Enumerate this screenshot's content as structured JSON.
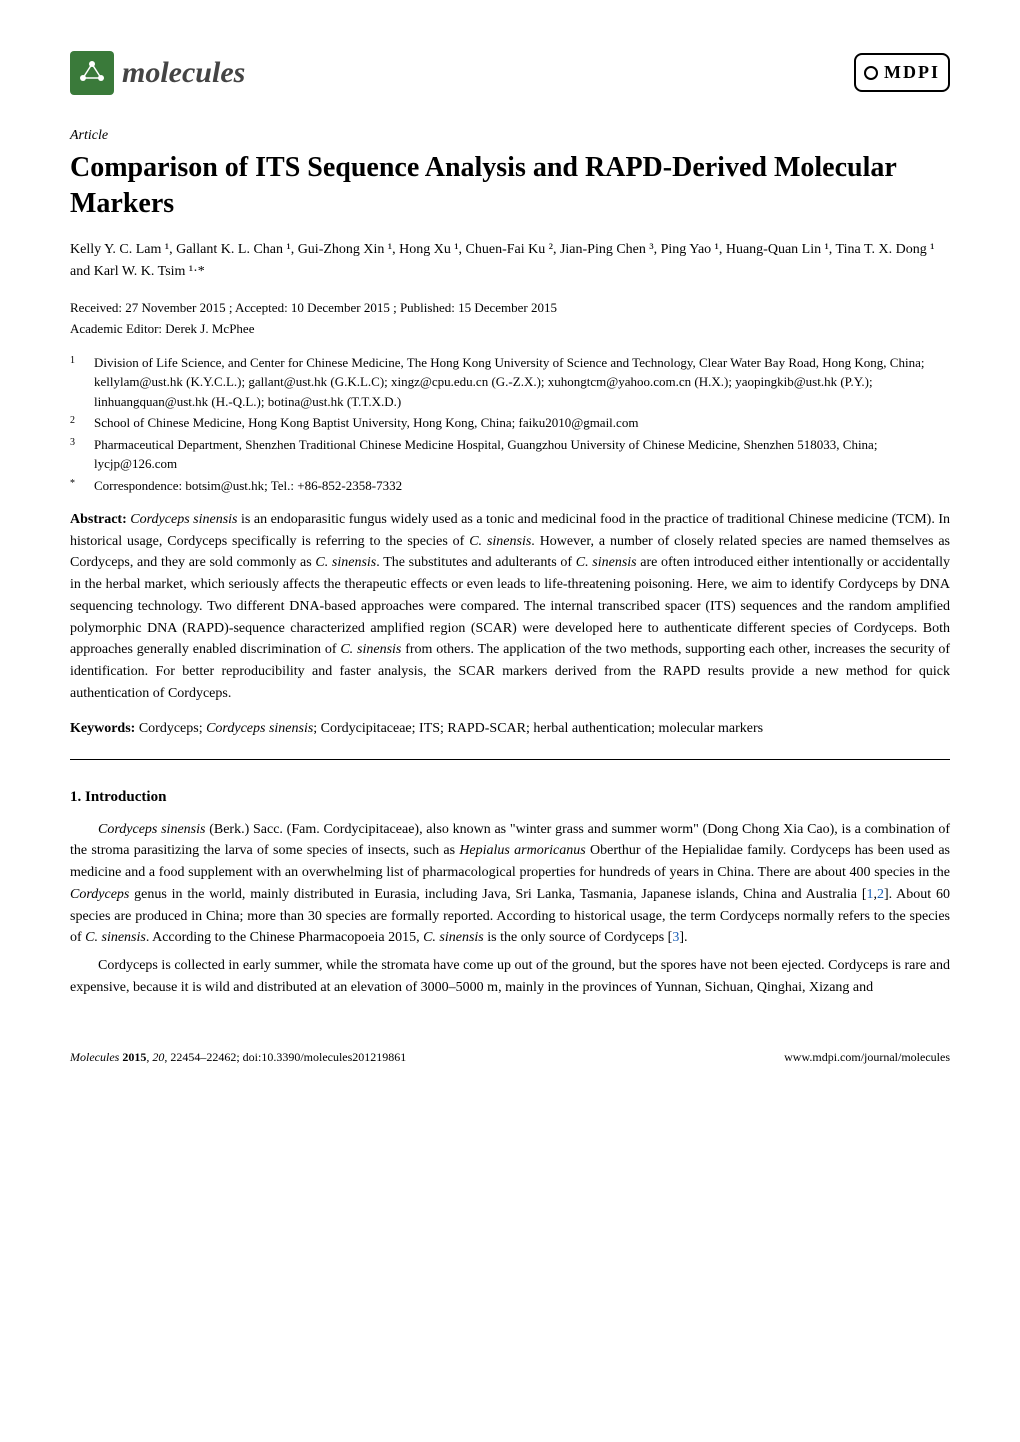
{
  "header": {
    "journal_name": "molecules",
    "publisher_logo": "MDPI"
  },
  "article": {
    "type": "Article",
    "title": "Comparison of ITS Sequence Analysis and RAPD-Derived Molecular Markers"
  },
  "authors_line": "Kelly Y. C. Lam ¹, Gallant K. L. Chan ¹, Gui-Zhong Xin ¹, Hong Xu ¹, Chuen-Fai Ku ², Jian-Ping Chen ³, Ping Yao ¹, Huang-Quan Lin ¹, Tina T. X. Dong ¹ and Karl W. K. Tsim ¹·*",
  "dates": "Received: 27 November 2015 ; Accepted: 10 December 2015 ; Published: 15 December 2015",
  "editor": "Academic Editor: Derek J. McPhee",
  "affiliations": [
    {
      "num": "1",
      "text": "Division of Life Science, and Center for Chinese Medicine, The Hong Kong University of Science and Technology, Clear Water Bay Road, Hong Kong, China; kellylam@ust.hk (K.Y.C.L.); gallant@ust.hk (G.K.L.C); xingz@cpu.edu.cn (G.-Z.X.); xuhongtcm@yahoo.com.cn (H.X.); yaopingkib@ust.hk (P.Y.); linhuangquan@ust.hk (H.-Q.L.); botina@ust.hk (T.T.X.D.)"
    },
    {
      "num": "2",
      "text": "School of Chinese Medicine, Hong Kong Baptist University, Hong Kong, China; faiku2010@gmail.com"
    },
    {
      "num": "3",
      "text": "Pharmaceutical Department, Shenzhen Traditional Chinese Medicine Hospital, Guangzhou University of Chinese Medicine, Shenzhen 518033, China; lycjp@126.com"
    },
    {
      "num": "*",
      "text": "Correspondence: botsim@ust.hk; Tel.: +86-852-2358-7332"
    }
  ],
  "abstract": {
    "label": "Abstract:",
    "text_parts": [
      {
        "italic": true,
        "text": "Cordyceps sinensis"
      },
      {
        "italic": false,
        "text": " is an endoparasitic fungus widely used as a tonic and medicinal food in the practice of traditional Chinese medicine (TCM). In historical usage, Cordyceps specifically is referring to the species of "
      },
      {
        "italic": true,
        "text": "C. sinensis"
      },
      {
        "italic": false,
        "text": ". However, a number of closely related species are named themselves as Cordyceps, and they are sold commonly as "
      },
      {
        "italic": true,
        "text": "C. sinensis"
      },
      {
        "italic": false,
        "text": ". The substitutes and adulterants of "
      },
      {
        "italic": true,
        "text": "C. sinensis"
      },
      {
        "italic": false,
        "text": " are often introduced either intentionally or accidentally in the herbal market, which seriously affects the therapeutic effects or even leads to life-threatening poisoning. Here, we aim to identify Cordyceps by DNA sequencing technology. Two different DNA-based approaches were compared. The internal transcribed spacer (ITS) sequences and the random amplified polymorphic DNA (RAPD)-sequence characterized amplified region (SCAR) were developed here to authenticate different species of Cordyceps. Both approaches generally enabled discrimination of "
      },
      {
        "italic": true,
        "text": "C. sinensis"
      },
      {
        "italic": false,
        "text": " from others. The application of the two methods, supporting each other, increases the security of identification. For better reproducibility and faster analysis, the SCAR markers derived from the RAPD results provide a new method for quick authentication of Cordyceps."
      }
    ]
  },
  "keywords": {
    "label": "Keywords:",
    "text_parts": [
      {
        "italic": false,
        "text": " Cordyceps; "
      },
      {
        "italic": true,
        "text": "Cordyceps sinensis"
      },
      {
        "italic": false,
        "text": "; Cordycipitaceae; ITS; RAPD-SCAR; herbal authentication; molecular markers"
      }
    ]
  },
  "section": {
    "heading": "1. Introduction",
    "para1_parts": [
      {
        "italic": true,
        "text": "Cordyceps sinensis"
      },
      {
        "italic": false,
        "text": " (Berk.) Sacc. (Fam. Cordycipitaceae), also known as \"winter grass and summer worm\" (Dong Chong Xia Cao), is a combination of the stroma parasitizing the larva of some species of insects, such as "
      },
      {
        "italic": true,
        "text": "Hepialus armoricanus"
      },
      {
        "italic": false,
        "text": " Oberthur of the Hepialidae family. Cordyceps has been used as medicine and a food supplement with an overwhelming list of pharmacological properties for hundreds of years in China. There are about 400 species in the "
      },
      {
        "italic": true,
        "text": "Cordyceps"
      },
      {
        "italic": false,
        "text": " genus in the world, mainly distributed in Eurasia, including Java, Sri Lanka, Tasmania, Japanese islands, China and Australia ["
      },
      {
        "ref": true,
        "text": "1"
      },
      {
        "italic": false,
        "text": ","
      },
      {
        "ref": true,
        "text": "2"
      },
      {
        "italic": false,
        "text": "]. About 60 species are produced in China; more than 30 species are formally reported. According to historical usage, the term Cordyceps normally refers to the species of "
      },
      {
        "italic": true,
        "text": "C. sinensis"
      },
      {
        "italic": false,
        "text": ". According to the Chinese Pharmacopoeia 2015, "
      },
      {
        "italic": true,
        "text": "C. sinensis"
      },
      {
        "italic": false,
        "text": " is the only source of Cordyceps ["
      },
      {
        "ref": true,
        "text": "3"
      },
      {
        "italic": false,
        "text": "]."
      }
    ],
    "para2": "Cordyceps is collected in early summer, while the stromata have come up out of the ground, but the spores have not been ejected. Cordyceps is rare and expensive, because it is wild and distributed at an elevation of 3000–5000 m, mainly in the provinces of Yunnan, Sichuan, Qinghai, Xizang and"
  },
  "footer": {
    "left_parts": [
      {
        "italic": true,
        "text": "Molecules "
      },
      {
        "bold": true,
        "text": "2015"
      },
      {
        "italic": true,
        "text": ", 20"
      },
      {
        "italic": false,
        "text": ", 22454–22462; doi:10.3390/molecules201219861"
      }
    ],
    "right": "www.mdpi.com/journal/molecules"
  }
}
